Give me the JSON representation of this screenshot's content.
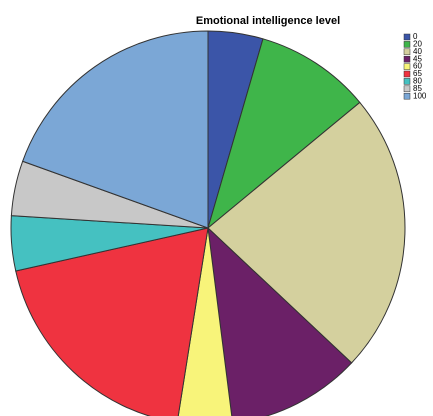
{
  "chart_data": {
    "type": "pie",
    "title": "Emotional intelligence level",
    "categories": [
      "0",
      "20",
      "40",
      "45",
      "60",
      "65",
      "80",
      "85",
      "100"
    ],
    "values": [
      4.5,
      9.5,
      23,
      11,
      4.5,
      19,
      4.5,
      4.5,
      19.5
    ],
    "colors": [
      "#3b55a8",
      "#3fb54a",
      "#d4d09e",
      "#6b2067",
      "#f8f47a",
      "#ef3340",
      "#45c1c1",
      "#c8c8c8",
      "#7ba7d6"
    ],
    "legend": "upper right"
  }
}
